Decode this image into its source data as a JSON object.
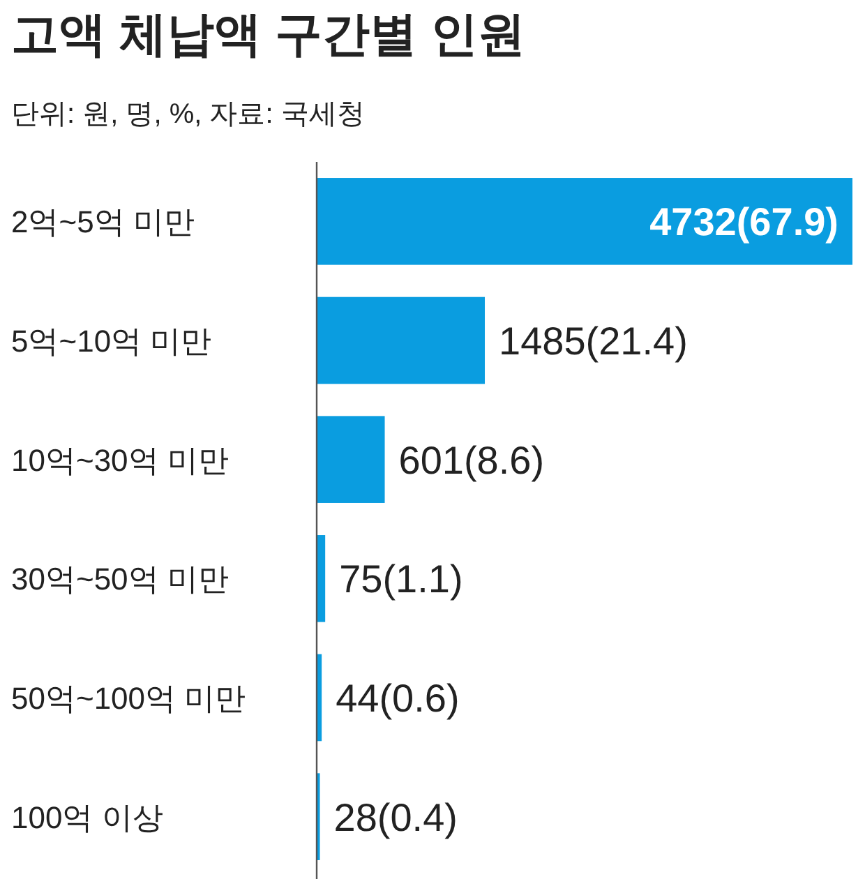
{
  "chart_data": {
    "type": "bar",
    "orientation": "horizontal",
    "title": "고액 체납액 구간별 인원",
    "subtitle": "단위: 원, 명, %, 자료: 국세청",
    "categories": [
      "2억~5억 미만",
      "5억~10억 미만",
      "10억~30억 미만",
      "30억~50억 미만",
      "50억~100억 미만",
      "100억 이상"
    ],
    "series": [
      {
        "color": "#0a9de0",
        "values": [
          4732,
          1485,
          601,
          75,
          44,
          28
        ],
        "value_labels": [
          "4732(67.9)",
          "1485(21.4)",
          "601(8.6)",
          "75(1.1)",
          "44(0.6)",
          "28(0.4)"
        ]
      }
    ]
  }
}
